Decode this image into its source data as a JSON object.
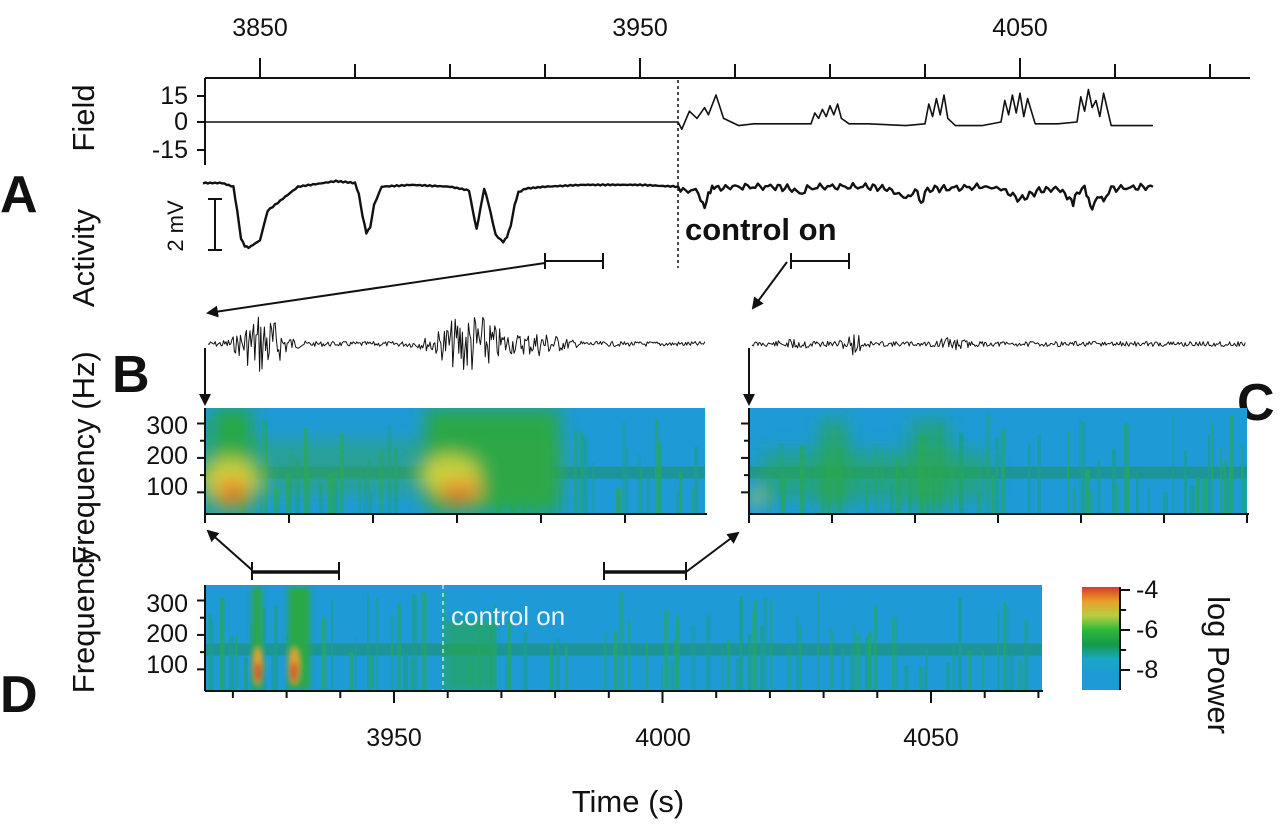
{
  "chart_data": [
    {
      "panel": "A",
      "type": "line",
      "xlabel": "",
      "x_ticks": [
        "3850",
        "3950",
        "4050"
      ],
      "xlim": [
        3830,
        4080
      ],
      "series": [
        {
          "name": "Field",
          "y_ticks": [
            "15",
            "0",
            "-15"
          ],
          "ylim": [
            -20,
            20
          ]
        },
        {
          "name": "Activity",
          "scale_bar": "2 mV"
        }
      ],
      "field_trace": {
        "x": [
          3835,
          3960,
          3961,
          3963,
          3965,
          3967,
          3968,
          3970,
          3972,
          3976,
          3980,
          3990,
          3995,
          3996,
          3997,
          3998,
          3999,
          4000,
          4001,
          4002,
          4003,
          4005,
          4010,
          4020,
          4025,
          4026,
          4027,
          4028,
          4029,
          4030,
          4031,
          4033,
          4040,
          4045,
          4046,
          4047,
          4048,
          4049,
          4050,
          4051,
          4052,
          4054,
          4060,
          4065,
          4066,
          4067,
          4068,
          4069,
          4070,
          4071,
          4072,
          4074,
          4080,
          4085
        ],
        "y": [
          0,
          0,
          -4,
          6,
          2,
          8,
          4,
          15,
          2,
          -2,
          -1,
          -1,
          -1,
          5,
          2,
          7,
          3,
          9,
          4,
          10,
          2,
          -1,
          -1,
          -2,
          -1,
          10,
          3,
          13,
          4,
          15,
          2,
          -2,
          -2,
          0,
          12,
          4,
          15,
          5,
          16,
          3,
          13,
          -1,
          -1,
          0,
          14,
          6,
          18,
          8,
          12,
          3,
          16,
          -2,
          -2,
          -2
        ]
      },
      "activity_trace": {
        "x": [
          3835,
          3840,
          3843,
          3844,
          3845,
          3846,
          3847,
          3850,
          3852,
          3860,
          3870,
          3875,
          3876,
          3877,
          3878,
          3879,
          3880,
          3882,
          3890,
          3900,
          3905,
          3906,
          3907,
          3908,
          3909,
          3910,
          3912,
          3914,
          3915,
          3916,
          3917,
          3918,
          3920,
          3925,
          3935,
          3950,
          3960,
          3962,
          3964,
          3966,
          3967,
          3968,
          3969,
          3970,
          3975,
          3985,
          3990,
          3992,
          3994,
          3998,
          4010,
          4015,
          4020,
          4023,
          4024,
          4025,
          4027,
          4030,
          4040,
          4045,
          4050,
          4055,
          4060,
          4063,
          4064,
          4065,
          4067,
          4068,
          4069,
          4071,
          4072,
          4074,
          4085
        ],
        "y": [
          0,
          0,
          -0.2,
          -1.5,
          -3,
          -3.4,
          -3.5,
          -3.1,
          -1.5,
          -0.2,
          0.1,
          0,
          -0.6,
          -1.8,
          -2.7,
          -2.4,
          -1.2,
          -0.2,
          -0.1,
          -0.2,
          -0.4,
          -1.5,
          -2.5,
          -1.4,
          -0.3,
          -1,
          -2.8,
          -3.2,
          -2.9,
          -2.3,
          -1.2,
          -0.5,
          -0.3,
          -0.2,
          -0.1,
          -0.1,
          -0.2,
          -0.5,
          -0.3,
          -0.8,
          -1.3,
          -0.6,
          -0.3,
          -0.3,
          -0.2,
          -0.2,
          -0.3,
          -0.6,
          -0.3,
          -0.2,
          -0.2,
          -0.3,
          -0.8,
          -0.4,
          -1.1,
          -0.5,
          -0.3,
          -0.3,
          -0.2,
          -0.3,
          -0.9,
          -0.4,
          -0.3,
          -0.8,
          -1.2,
          -0.5,
          -0.3,
          -0.9,
          -1.4,
          -0.6,
          -0.9,
          -0.3,
          -0.2
        ]
      },
      "control_onset_time": 3960,
      "annotation": "control on"
    },
    {
      "panel": "B",
      "type": "heatmap",
      "ylabel": "Frequency (Hz)",
      "y_ticks": [
        "300",
        "200",
        "100"
      ],
      "ylim": [
        40,
        345
      ],
      "hot_regions": [
        {
          "t": 0.07,
          "f_hz": 90,
          "level": -4.3
        },
        {
          "t": 0.5,
          "f_hz": 90,
          "level": -4.6
        }
      ]
    },
    {
      "panel": "C",
      "type": "heatmap",
      "ylabel": "Frequency (Hz)",
      "ylim": [
        40,
        345
      ],
      "hot_regions": [
        {
          "t": 0.01,
          "f_hz": 70,
          "level": -6.3
        }
      ]
    },
    {
      "panel": "D",
      "type": "heatmap",
      "xlabel": "Time (s)",
      "ylabel": "Frequency",
      "x_ticks": [
        "3950",
        "4000",
        "4050"
      ],
      "xlim": [
        3914,
        4070
      ],
      "ylim": [
        40,
        345
      ],
      "y_ticks": [
        "300",
        "200",
        "100"
      ],
      "annotation": "control on",
      "control_onset_time": 3960,
      "hot_regions": [
        {
          "t": 3926,
          "f_hz": 90,
          "level": -4.5
        },
        {
          "t": 3933,
          "f_hz": 90,
          "level": -4.5
        }
      ],
      "colorbar": {
        "label": "log  Power",
        "ticks": [
          "-4",
          "-6",
          "-8"
        ],
        "range": [
          -9,
          -4
        ],
        "colors": [
          "#1e9ad6",
          "#1aa6c4",
          "#149a48",
          "#2bb83c",
          "#b6cf3e",
          "#e8a02a",
          "#d83a26"
        ]
      }
    }
  ],
  "labels": {
    "panel_a": "A",
    "panel_b": "B",
    "panel_c": "C",
    "panel_d": "D",
    "field": "Field",
    "activity": "Activity",
    "scale_bar": "2 mV",
    "control_on_a": "control on",
    "control_on_d": "control on",
    "freq_label": "Frequency (Hz)",
    "freq_label_d": "Frequency",
    "time_label": "Time (s)",
    "colorbar_label": "log  Power",
    "a_x_ticks": [
      "3850",
      "3950",
      "4050"
    ],
    "field_ticks": [
      "15",
      "0",
      "-15"
    ],
    "spec_ticks": [
      "300",
      "200",
      "100"
    ],
    "d_x_ticks": [
      "3950",
      "4000",
      "4050"
    ],
    "cb_ticks": [
      "-4",
      "-6",
      "-8"
    ]
  }
}
